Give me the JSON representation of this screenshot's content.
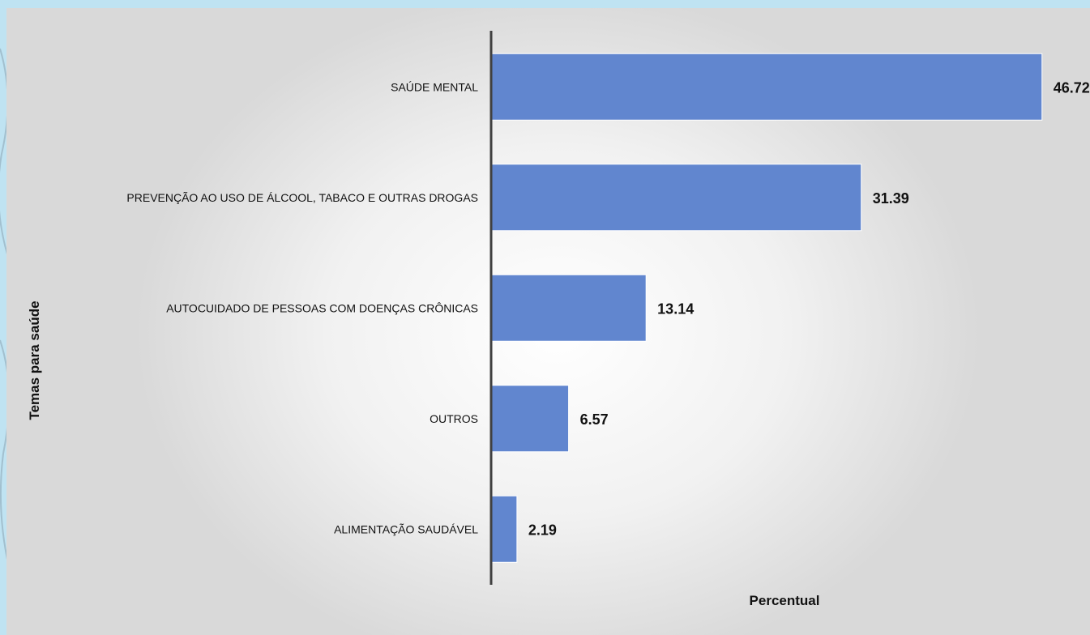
{
  "chart_data": {
    "type": "bar",
    "orientation": "horizontal",
    "categories": [
      "SAÚDE MENTAL",
      "PREVENÇÃO AO USO DE ÁLCOOL, TABACO E OUTRAS DROGAS",
      "AUTOCUIDADO DE PESSOAS COM DOENÇAS CRÔNICAS",
      "OUTROS",
      "ALIMENTAÇÃO SAUDÁVEL"
    ],
    "values": [
      46.72,
      31.39,
      13.14,
      6.57,
      2.19
    ],
    "value_labels": [
      "46.72",
      "31.39",
      "13.14",
      "6.57",
      "2.19"
    ],
    "xlabel": "Percentual",
    "ylabel": "Temas para saúde",
    "xlim": [
      0,
      47
    ],
    "grid": false,
    "legend": "none",
    "bar_color": "#6186cf",
    "axis_color": "#404040",
    "text_color": "#111111"
  }
}
